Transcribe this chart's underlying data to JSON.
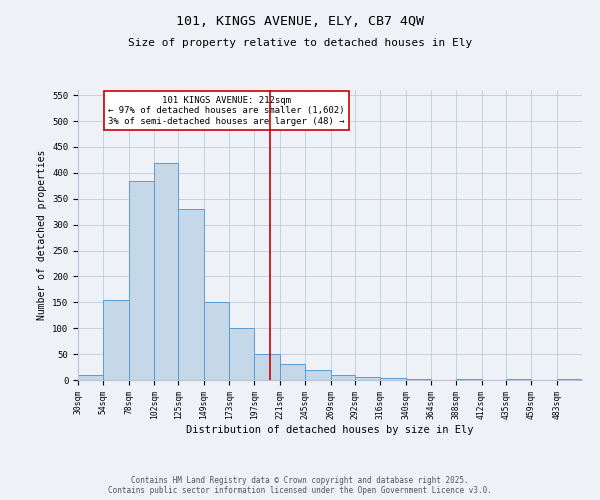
{
  "title_line1": "101, KINGS AVENUE, ELY, CB7 4QW",
  "title_line2": "Size of property relative to detached houses in Ely",
  "xlabel": "Distribution of detached houses by size in Ely",
  "ylabel": "Number of detached properties",
  "annotation_line1": "101 KINGS AVENUE: 212sqm",
  "annotation_line2": "← 97% of detached houses are smaller (1,602)",
  "annotation_line3": "3% of semi-detached houses are larger (48) →",
  "footer_line1": "Contains HM Land Registry data © Crown copyright and database right 2025.",
  "footer_line2": "Contains public sector information licensed under the Open Government Licence v3.0.",
  "bar_color": "#c5d8e8",
  "bar_edge_color": "#5b9bd5",
  "vline_color": "#cc0000",
  "vline_x": 212,
  "background_color": "#eef2f7",
  "annotation_box_color": "#ffffff",
  "annotation_box_edge": "#cc0000",
  "bins": [
    30,
    54,
    78,
    102,
    125,
    149,
    173,
    197,
    221,
    245,
    269,
    292,
    316,
    340,
    364,
    388,
    412,
    435,
    459,
    483,
    507
  ],
  "heights": [
    10,
    155,
    385,
    420,
    330,
    150,
    100,
    50,
    30,
    20,
    10,
    5,
    3,
    2,
    0,
    1,
    0,
    1,
    0,
    1
  ],
  "ylim": [
    0,
    560
  ],
  "yticks": [
    0,
    50,
    100,
    150,
    200,
    250,
    300,
    350,
    400,
    450,
    500,
    550
  ]
}
